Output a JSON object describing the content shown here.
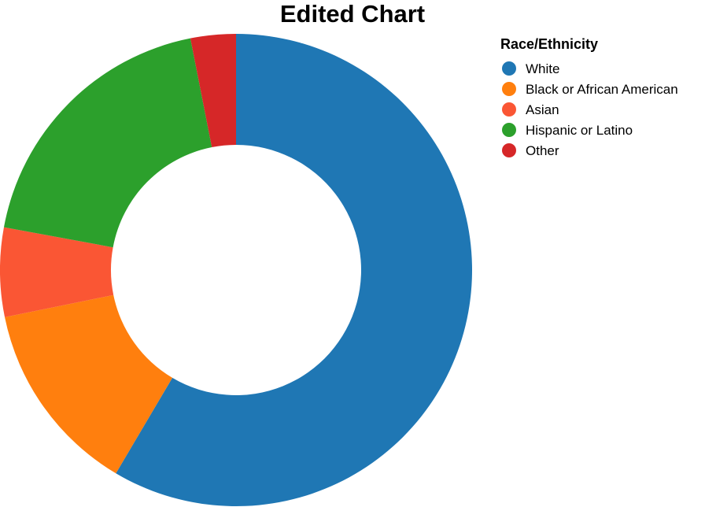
{
  "chart_data": {
    "type": "pie",
    "variant": "donut",
    "title": "Edited Chart",
    "legend": {
      "title": "Race/Ethnicity",
      "position": "top-right"
    },
    "categories": [
      "White",
      "Black or African American",
      "Asian",
      "Hispanic or Latino",
      "Other"
    ],
    "values": [
      58.5,
      13.3,
      6.1,
      19.0,
      3.1
    ],
    "colors": [
      "#1f77b4",
      "#ff7f0e",
      "#fa5634",
      "#2ca02c",
      "#d62728"
    ],
    "start_angle_deg": 0,
    "direction": "clockwise"
  }
}
